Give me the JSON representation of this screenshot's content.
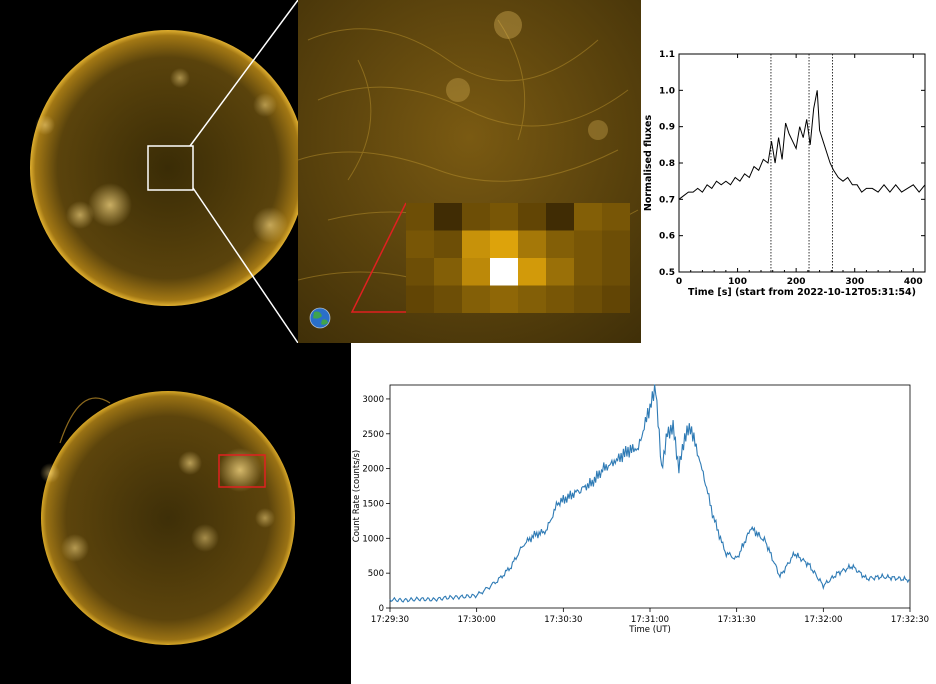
{
  "colors": {
    "sun_core": "#3a2c06",
    "sun_mid": "#6b5010",
    "sun_limb": "#d6a020",
    "zoom_bg": "#5a430c",
    "pixel_bright": "#ffffff",
    "line_series": "#000000",
    "count_series": "#2f7bb5",
    "highlight_box": "#e02020",
    "connector": "#ffffff"
  },
  "images": {
    "full_disk_top": {
      "icon": "sun-full-disk-euv"
    },
    "zoom_region": {
      "icon": "quiet-sun-zoom"
    },
    "earth": {
      "icon": "earth-scale-icon"
    },
    "full_disk_bottom": {
      "icon": "sun-full-disk-euv-flare"
    }
  },
  "pixel_grid": {
    "rows": 4,
    "cols": 8,
    "intensity": [
      [
        0.35,
        0.15,
        0.35,
        0.4,
        0.3,
        0.15,
        0.45,
        0.4
      ],
      [
        0.4,
        0.35,
        0.75,
        0.85,
        0.6,
        0.45,
        0.4,
        0.35
      ],
      [
        0.35,
        0.45,
        0.7,
        1.0,
        0.8,
        0.55,
        0.4,
        0.35
      ],
      [
        0.3,
        0.35,
        0.45,
        0.5,
        0.45,
        0.4,
        0.35,
        0.3
      ]
    ]
  },
  "chart_data": [
    {
      "type": "line",
      "xlabel": "Time [s] (start from 2022-10-12T05:31:54)",
      "ylabel": "Normalised fluxes",
      "xlim": [
        0,
        420
      ],
      "ylim": [
        0.5,
        1.1
      ],
      "xticks": [
        "0",
        "100",
        "200",
        "300",
        "400"
      ],
      "yticks": [
        "0.5",
        "0.6",
        "0.7",
        "0.8",
        "0.9",
        "1.0",
        "1.1"
      ],
      "vlines": [
        157,
        222,
        262
      ],
      "series": [
        {
          "x": [
            0,
            8,
            16,
            24,
            32,
            40,
            48,
            56,
            64,
            72,
            80,
            88,
            96,
            104,
            112,
            120,
            128,
            136,
            144,
            152,
            158,
            164,
            170,
            176,
            182,
            188,
            194,
            200,
            206,
            212,
            218,
            224,
            230,
            236,
            240,
            246,
            252,
            258,
            264,
            272,
            280,
            288,
            296,
            304,
            312,
            320,
            330,
            340,
            350,
            360,
            370,
            380,
            390,
            400,
            410,
            420
          ],
          "y": [
            0.7,
            0.71,
            0.72,
            0.72,
            0.73,
            0.72,
            0.74,
            0.73,
            0.75,
            0.74,
            0.75,
            0.74,
            0.76,
            0.75,
            0.77,
            0.76,
            0.79,
            0.78,
            0.81,
            0.8,
            0.86,
            0.8,
            0.87,
            0.81,
            0.91,
            0.88,
            0.86,
            0.84,
            0.9,
            0.87,
            0.92,
            0.85,
            0.95,
            1.0,
            0.89,
            0.86,
            0.83,
            0.8,
            0.78,
            0.76,
            0.75,
            0.76,
            0.74,
            0.74,
            0.72,
            0.73,
            0.73,
            0.72,
            0.74,
            0.72,
            0.74,
            0.72,
            0.73,
            0.74,
            0.72,
            0.74
          ]
        }
      ]
    },
    {
      "type": "line",
      "xlabel": "Time (UT)",
      "ylabel": "Count Rate (counts/s)",
      "xlim": [
        "17:29:30",
        "17:32:30"
      ],
      "ylim": [
        0,
        3200
      ],
      "xticks": [
        "17:29:30",
        "17:30:00",
        "17:30:30",
        "17:31:00",
        "17:31:30",
        "17:32:00",
        "17:32:30"
      ],
      "yticks": [
        "0",
        "500",
        "1000",
        "1500",
        "2000",
        "2500",
        "3000"
      ],
      "series": [
        {
          "x": [
            "17:29:30",
            "17:29:35",
            "17:29:40",
            "17:29:45",
            "17:29:50",
            "17:29:55",
            "17:30:00",
            "17:30:04",
            "17:30:08",
            "17:30:12",
            "17:30:16",
            "17:30:20",
            "17:30:24",
            "17:30:28",
            "17:30:32",
            "17:30:36",
            "17:30:40",
            "17:30:44",
            "17:30:48",
            "17:30:52",
            "17:30:56",
            "17:31:00",
            "17:31:02",
            "17:31:04",
            "17:31:06",
            "17:31:08",
            "17:31:10",
            "17:31:12",
            "17:31:14",
            "17:31:18",
            "17:31:22",
            "17:31:26",
            "17:31:30",
            "17:31:35",
            "17:31:40",
            "17:31:45",
            "17:31:50",
            "17:31:55",
            "17:32:00",
            "17:32:05",
            "17:32:10",
            "17:32:15",
            "17:32:20",
            "17:32:25",
            "17:32:30"
          ],
          "y": [
            120,
            110,
            130,
            120,
            150,
            160,
            180,
            290,
            420,
            600,
            900,
            1050,
            1100,
            1500,
            1600,
            1700,
            1800,
            2000,
            2100,
            2250,
            2300,
            2900,
            3150,
            2000,
            2500,
            2600,
            2000,
            2450,
            2600,
            2000,
            1300,
            800,
            700,
            1150,
            950,
            450,
            780,
            620,
            320,
            500,
            600,
            420,
            450,
            430,
            400
          ]
        }
      ]
    }
  ]
}
